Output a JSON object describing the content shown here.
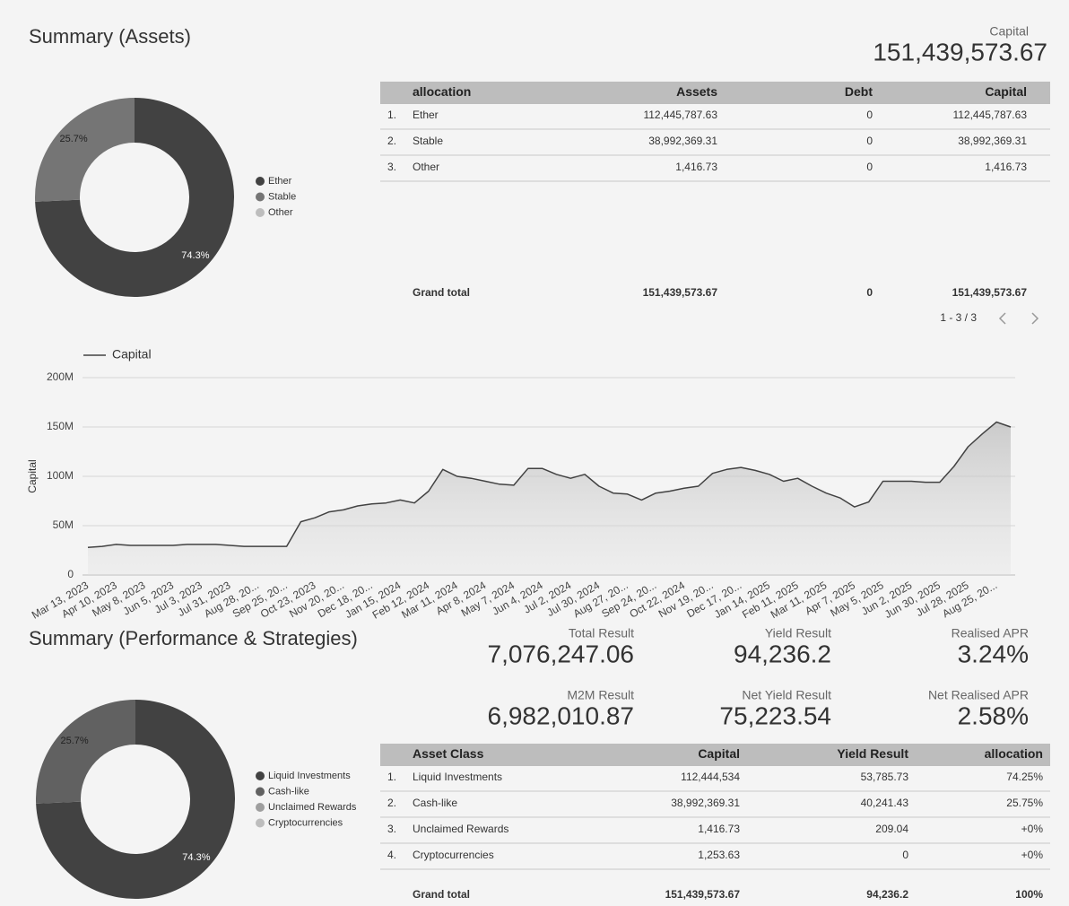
{
  "header": {
    "title": "Summary (Assets)",
    "capital_label": "Capital",
    "capital_value": "151,439,573.67"
  },
  "chart_data": [
    {
      "type": "pie",
      "donut": true,
      "categories": [
        "Ether",
        "Stable",
        "Other"
      ],
      "values": [
        74.3,
        25.7,
        0
      ],
      "value_labels": [
        "74.3%",
        "25.7%",
        null
      ],
      "colors": [
        "#424242",
        "#757575",
        "#bdbdbd"
      ],
      "legend": "right"
    },
    {
      "type": "line",
      "y_label": "Capital",
      "legend": "top-left",
      "grid": true,
      "area": true,
      "categories": [
        "Mar 13, 2023",
        null,
        "Apr 10, 2023",
        null,
        "May 8, 2023",
        null,
        "Jun 5, 2023",
        null,
        "Jul 3, 2023",
        null,
        "Jul 31, 2023",
        null,
        "Aug 28, 20...",
        null,
        "Sep 25, 20...",
        null,
        "Oct 23, 2023",
        null,
        "Nov 20, 20...",
        null,
        "Dec 18, 20...",
        null,
        "Jan 15, 2024",
        null,
        "Feb 12, 2024",
        null,
        "Mar 11, 2024",
        null,
        "Apr 8, 2024",
        null,
        "May 7, 2024",
        null,
        "Jun 4, 2024",
        null,
        "Jul 2, 2024",
        null,
        "Jul 30, 2024",
        null,
        "Aug 27, 20...",
        null,
        "Sep 24, 20...",
        null,
        "Oct 22, 2024",
        null,
        "Nov 19, 20...",
        null,
        "Dec 17, 20...",
        null,
        "Jan 14, 2025",
        null,
        "Feb 11, 2025",
        null,
        "Mar 11, 2025",
        null,
        "Apr 7, 2025",
        null,
        "May 5, 2025",
        null,
        "Jun 2, 2025",
        null,
        "Jun 30, 2025",
        null,
        "Jul 28, 2025",
        null,
        "Aug 25, 20...",
        null
      ],
      "series": [
        {
          "name": "Capital",
          "color": "#424242",
          "values": [
            28,
            29,
            31,
            30,
            30,
            30,
            30,
            31,
            31,
            31,
            30,
            29,
            29,
            29,
            29,
            54,
            58,
            64,
            66,
            70,
            72,
            73,
            76,
            73,
            85,
            107,
            100,
            98,
            95,
            92,
            91,
            108,
            108,
            102,
            98,
            102,
            90,
            83,
            82,
            76,
            83,
            85,
            88,
            90,
            103,
            107,
            109,
            106,
            102,
            95,
            98,
            90,
            83,
            78,
            69,
            74,
            95,
            95,
            95,
            94,
            94,
            110,
            130,
            143,
            155,
            150
          ]
        }
      ],
      "ylim": [
        0,
        200
      ],
      "yticks": [
        0,
        {
          "value": 50,
          "label": "50M"
        },
        {
          "value": 100,
          "label": "100M"
        },
        {
          "value": 150,
          "label": "150M"
        },
        {
          "value": 200,
          "label": "200M"
        }
      ]
    },
    {
      "type": "pie",
      "donut": true,
      "categories": [
        "Liquid Investments",
        "Cash-like",
        "Unclaimed Rewards",
        "Cryptocurrencies"
      ],
      "values": [
        74.3,
        25.7,
        0,
        0
      ],
      "value_labels": [
        "74.3%",
        "25.7%",
        null,
        null
      ],
      "colors": [
        "#424242",
        "#616161",
        "#9e9e9e",
        "#bdbdbd"
      ],
      "legend": "right"
    }
  ],
  "assets_table": {
    "header": [
      "allocation",
      "Assets",
      "Debt",
      "Capital"
    ],
    "rows": [
      [
        "1.",
        "Ether",
        "112,445,787.63",
        "0",
        "112,445,787.63"
      ],
      [
        "2.",
        "Stable",
        "38,992,369.31",
        "0",
        "38,992,369.31"
      ],
      [
        "3.",
        "Other",
        "1,416.73",
        "0",
        "1,416.73"
      ]
    ],
    "total": [
      "Grand total",
      "151,439,573.67",
      "0",
      "151,439,573.67"
    ],
    "pagination": "1 - 3 / 3"
  },
  "performance": {
    "title": "Summary (Performance & Strategies)",
    "scorecards": [
      {
        "label": "Total Result",
        "value": "7,076,247.06"
      },
      {
        "label": "Yield Result",
        "value": "94,236.2"
      },
      {
        "label": "Realised APR",
        "value": "3.24%"
      },
      {
        "label": "M2M Result",
        "value": "6,982,010.87"
      },
      {
        "label": "Net Yield Result",
        "value": "75,223.54"
      },
      {
        "label": "Net Realised APR",
        "value": "2.58%"
      }
    ]
  },
  "strategies_table": {
    "header": [
      "Asset Class",
      "Capital",
      "Yield Result",
      "allocation"
    ],
    "rows": [
      [
        "1.",
        "Liquid Investments",
        "112,444,534",
        "53,785.73",
        "74.25%"
      ],
      [
        "2.",
        "Cash-like",
        "38,992,369.31",
        "40,241.43",
        "25.75%"
      ],
      [
        "3.",
        "Unclaimed Rewards",
        "1,416.73",
        "209.04",
        "+0%"
      ],
      [
        "4.",
        "Cryptocurrencies",
        "1,253.63",
        "0",
        "+0%"
      ]
    ],
    "total": [
      "Grand total",
      "151,439,573.67",
      "94,236.2",
      "100%"
    ]
  }
}
